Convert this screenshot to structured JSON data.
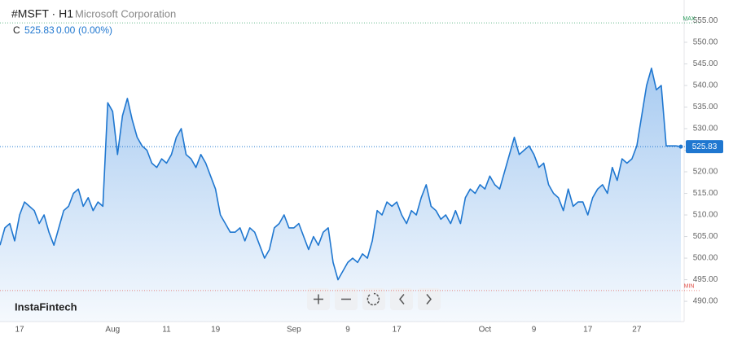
{
  "chart_data": {
    "type": "area",
    "symbol": "#MSFT · H1",
    "company": "Microsoft Corporation",
    "close_label": "C",
    "close": "525.83",
    "change": "0.00",
    "change_pct": "(0.00%)",
    "brand": "InstaFintech",
    "max_line": {
      "label": "MAX",
      "value": 554.5
    },
    "min_line": {
      "label": "MIN",
      "value": 492.5
    },
    "categories": [
      null,
      null,
      null,
      null,
      "17",
      null,
      null,
      null,
      null,
      null,
      null,
      null,
      null,
      null,
      null,
      null,
      null,
      null,
      null,
      null,
      null,
      null,
      null,
      "Aug",
      null,
      null,
      null,
      null,
      null,
      null,
      null,
      null,
      null,
      null,
      "11",
      null,
      null,
      null,
      null,
      null,
      null,
      null,
      null,
      null,
      "19",
      null,
      null,
      null,
      null,
      null,
      null,
      null,
      null,
      null,
      null,
      null,
      null,
      null,
      null,
      null,
      "Sep",
      null,
      null,
      null,
      null,
      null,
      null,
      null,
      null,
      null,
      null,
      "9",
      null,
      null,
      null,
      null,
      null,
      null,
      null,
      null,
      null,
      "17",
      null,
      null,
      null,
      null,
      null,
      null,
      null,
      null,
      null,
      null,
      null,
      null,
      null,
      null,
      null,
      null,
      null,
      "Oct",
      null,
      null,
      null,
      null,
      null,
      null,
      null,
      null,
      null,
      "9",
      null,
      null,
      null,
      null,
      null,
      null,
      null,
      null,
      null,
      null,
      "17",
      null,
      null,
      null,
      null,
      null,
      null,
      null,
      null,
      null,
      "27",
      null,
      null,
      null,
      null,
      null,
      null,
      null,
      null,
      null
    ],
    "series": [
      {
        "name": "#MSFT",
        "color": "#1f77d0",
        "values": [
          503,
          507,
          508,
          504,
          510,
          513,
          512,
          511,
          508,
          510,
          506,
          503,
          507,
          511,
          512,
          515,
          516,
          512,
          514,
          511,
          513,
          512,
          536,
          534,
          524,
          533,
          537,
          532,
          528,
          526,
          525,
          522,
          521,
          523,
          522,
          524,
          528,
          530,
          524,
          523,
          521,
          524,
          522,
          519,
          516,
          510,
          508,
          506,
          506,
          507,
          504,
          507,
          506,
          503,
          500,
          502,
          507,
          508,
          510,
          507,
          507,
          508,
          505,
          502,
          505,
          503,
          506,
          507,
          499,
          495,
          497,
          499,
          500,
          499,
          501,
          500,
          504,
          511,
          510,
          513,
          512,
          513,
          510,
          508,
          511,
          510,
          514,
          517,
          512,
          511,
          509,
          510,
          508,
          511,
          508,
          514,
          516,
          515,
          517,
          516,
          519,
          517,
          516,
          520,
          524,
          528,
          524,
          525,
          526,
          524,
          521,
          522,
          517,
          515,
          514,
          511,
          516,
          512,
          513,
          513,
          510,
          514,
          516,
          517,
          515,
          521,
          518,
          523,
          522,
          523,
          526,
          533,
          540,
          544,
          539,
          540,
          526,
          526,
          526,
          525.83
        ]
      }
    ],
    "ylim": [
      485.3,
      559.8
    ],
    "yticks": [
      {
        "value": 490,
        "label": "490.00"
      },
      {
        "value": 495,
        "label": "495.00"
      },
      {
        "value": 500,
        "label": "500.00"
      },
      {
        "value": 505,
        "label": "505.00"
      },
      {
        "value": 510,
        "label": "510.00"
      },
      {
        "value": 515,
        "label": "515.00"
      },
      {
        "value": 520,
        "label": "520.00"
      },
      {
        "value": 525,
        "label": "525.00"
      },
      {
        "value": 530,
        "label": "530.00"
      },
      {
        "value": 535,
        "label": "535.00"
      },
      {
        "value": 540,
        "label": "540.00"
      },
      {
        "value": 545,
        "label": "545.00"
      },
      {
        "value": 550,
        "label": "550.00"
      },
      {
        "value": 555,
        "label": "555.00"
      }
    ],
    "grid": false
  }
}
